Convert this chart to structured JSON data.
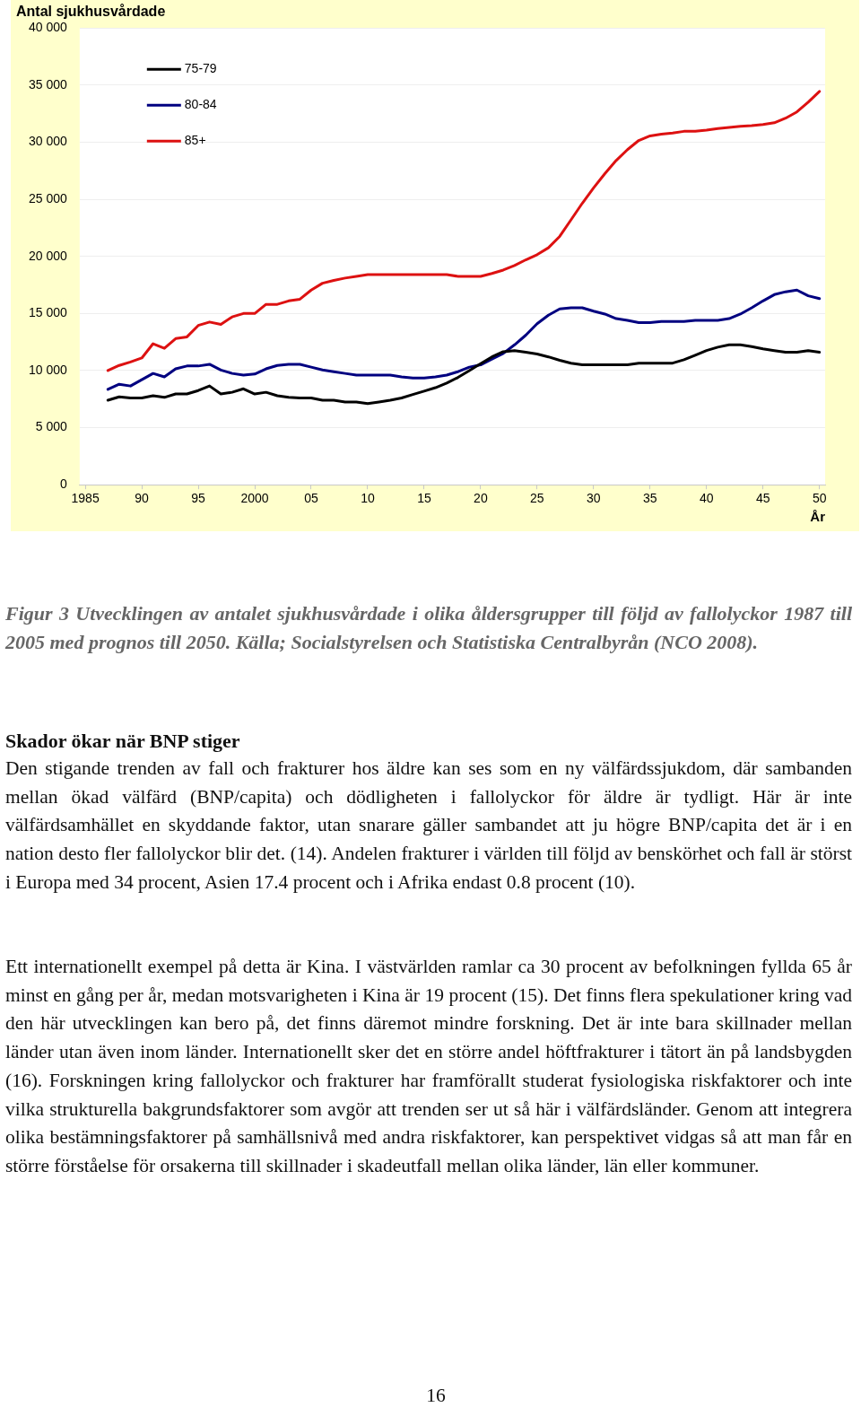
{
  "chart_data": {
    "type": "line",
    "title": "Antal sjukhusvårdade",
    "xlabel": "År",
    "x": [
      1987,
      1988,
      1989,
      1990,
      1991,
      1992,
      1993,
      1994,
      1995,
      1996,
      1997,
      1998,
      1999,
      2000,
      2001,
      2002,
      2003,
      2004,
      2005,
      2006,
      2007,
      2008,
      2009,
      2010,
      2011,
      2012,
      2013,
      2014,
      2015,
      2016,
      2017,
      2018,
      2019,
      2020,
      2021,
      2022,
      2023,
      2024,
      2025,
      2026,
      2027,
      2028,
      2029,
      2030,
      2031,
      2032,
      2033,
      2034,
      2035,
      2036,
      2037,
      2038,
      2039,
      2040,
      2041,
      2042,
      2043,
      2044,
      2045,
      2046,
      2047,
      2048,
      2049,
      2050
    ],
    "series": [
      {
        "name": "75-79",
        "color": "#000000",
        "values": [
          7400,
          7700,
          7600,
          7600,
          7800,
          7650,
          7950,
          7950,
          8250,
          8650,
          7950,
          8100,
          8400,
          7950,
          8100,
          7800,
          7650,
          7600,
          7600,
          7400,
          7400,
          7250,
          7250,
          7100,
          7250,
          7400,
          7600,
          7900,
          8200,
          8500,
          8900,
          9400,
          10000,
          10600,
          11200,
          11650,
          11750,
          11600,
          11450,
          11200,
          10900,
          10650,
          10500,
          10500,
          10500,
          10500,
          10500,
          10650,
          10650,
          10650,
          10650,
          10950,
          11350,
          11750,
          12050,
          12250,
          12250,
          12100,
          11900,
          11750,
          11600,
          11600,
          11750,
          11600
        ]
      },
      {
        "name": "80-84",
        "color": "#000080",
        "values": [
          8350,
          8800,
          8650,
          9200,
          9750,
          9450,
          10150,
          10400,
          10400,
          10550,
          10050,
          9750,
          9600,
          9700,
          10150,
          10450,
          10550,
          10550,
          10300,
          10050,
          9900,
          9750,
          9600,
          9600,
          9600,
          9600,
          9450,
          9350,
          9350,
          9450,
          9600,
          9900,
          10300,
          10500,
          11000,
          11500,
          12250,
          13100,
          14100,
          14850,
          15400,
          15500,
          15500,
          15200,
          14950,
          14550,
          14400,
          14200,
          14200,
          14300,
          14300,
          14300,
          14400,
          14400,
          14400,
          14550,
          14950,
          15500,
          16100,
          16650,
          16900,
          17050,
          16550,
          16300
        ]
      },
      {
        "name": "85+",
        "color": "#dd1111",
        "values": [
          10000,
          10450,
          10750,
          11100,
          12350,
          11950,
          12800,
          12950,
          13950,
          14250,
          14050,
          14700,
          15000,
          15000,
          15800,
          15800,
          16100,
          16250,
          17050,
          17650,
          17900,
          18100,
          18250,
          18400,
          18400,
          18400,
          18400,
          18400,
          18400,
          18400,
          18400,
          18250,
          18250,
          18250,
          18500,
          18800,
          19200,
          19700,
          20150,
          20750,
          21750,
          23200,
          24650,
          26000,
          27250,
          28400,
          29350,
          30150,
          30550,
          30700,
          30800,
          30950,
          30950,
          31050,
          31200,
          31300,
          31400,
          31450,
          31550,
          31700,
          32100,
          32650,
          33500,
          34450
        ]
      }
    ],
    "xlim": [
      1984.5,
      2050.5
    ],
    "xticks": [
      1985,
      {
        "value": 1990,
        "label": "90"
      },
      {
        "value": 1995,
        "label": "95"
      },
      2000,
      {
        "value": 2005,
        "label": "05"
      },
      {
        "value": 2010,
        "label": "10"
      },
      {
        "value": 2015,
        "label": "15"
      },
      {
        "value": 2020,
        "label": "20"
      },
      {
        "value": 2025,
        "label": "25"
      },
      {
        "value": 2030,
        "label": "30"
      },
      {
        "value": 2035,
        "label": "35"
      },
      {
        "value": 2040,
        "label": "40"
      },
      {
        "value": 2045,
        "label": "45"
      },
      {
        "value": 2050,
        "label": "50"
      }
    ],
    "ylim": [
      0,
      40000
    ],
    "yticks": [
      0,
      {
        "value": 5000,
        "label": "5 000"
      },
      {
        "value": 10000,
        "label": "10 000"
      },
      {
        "value": 15000,
        "label": "15 000"
      },
      {
        "value": 20000,
        "label": "20 000"
      },
      {
        "value": 25000,
        "label": "25 000"
      },
      {
        "value": 30000,
        "label": "30 000"
      },
      {
        "value": 35000,
        "label": "35 000"
      },
      {
        "value": 40000,
        "label": "40 000"
      }
    ],
    "grid": "y",
    "legend": "top left",
    "marker": "none",
    "line_style": "solid",
    "annotations": [
      "Figur 3 Utvecklingen av antalet sjukhusvårdade i olika åldersgrupper till följd av fallolyckor 1987 till 2005 med prognos till 2050. Källa; Socialstyrelsen och Statistiska Centralbyrån (NCO 2008).",
      "Skador ökar när BNP stiger",
      "Den stigande trenden av fall och frakturer hos äldre kan ses som en ny välfärdssjukdom, där sambanden mellan ökad välfärd (BNP/capita) och dödligheten i fallolyckor för äldre är tydligt. Här är inte välfärdsamhället en skyddande faktor, utan snarare gäller sambandet att ju högre BNP/capita det är i en nation desto fler fallolyckor blir det. (14). Andelen frakturer i världen till följd av benskörhet och fall är störst i Europa med 34 procent, Asien 17.4 procent och i Afrika endast 0.8 procent (10).",
      "Ett internationellt exempel på detta är Kina. I västvärlden ramlar ca 30 procent av befolkningen fyllda 65 år minst en gång per år, medan motsvarigheten i Kina är 19 procent (15). Det finns flera spekulationer kring vad den här utvecklingen kan bero på, det finns däremot mindre forskning. Det är inte bara skillnader mellan länder utan även inom länder. Internationellt sker det en större andel höftfrakturer i tätort än på landsbygden (16). Forskningen kring fallolyckor och frakturer har framförallt studerat fysiologiska riskfaktorer och inte vilka strukturella bakgrundsfaktorer som avgör att trenden ser ut så här i välfärdsländer. Genom att integrera olika bestämningsfaktorer på samhällsnivå med andra riskfaktorer, kan perspektivet vidgas så att man får en större förståelse för orsakerna till skillnader i skadeutfall mellan olika länder, län eller kommuner.",
      "16"
    ]
  }
}
